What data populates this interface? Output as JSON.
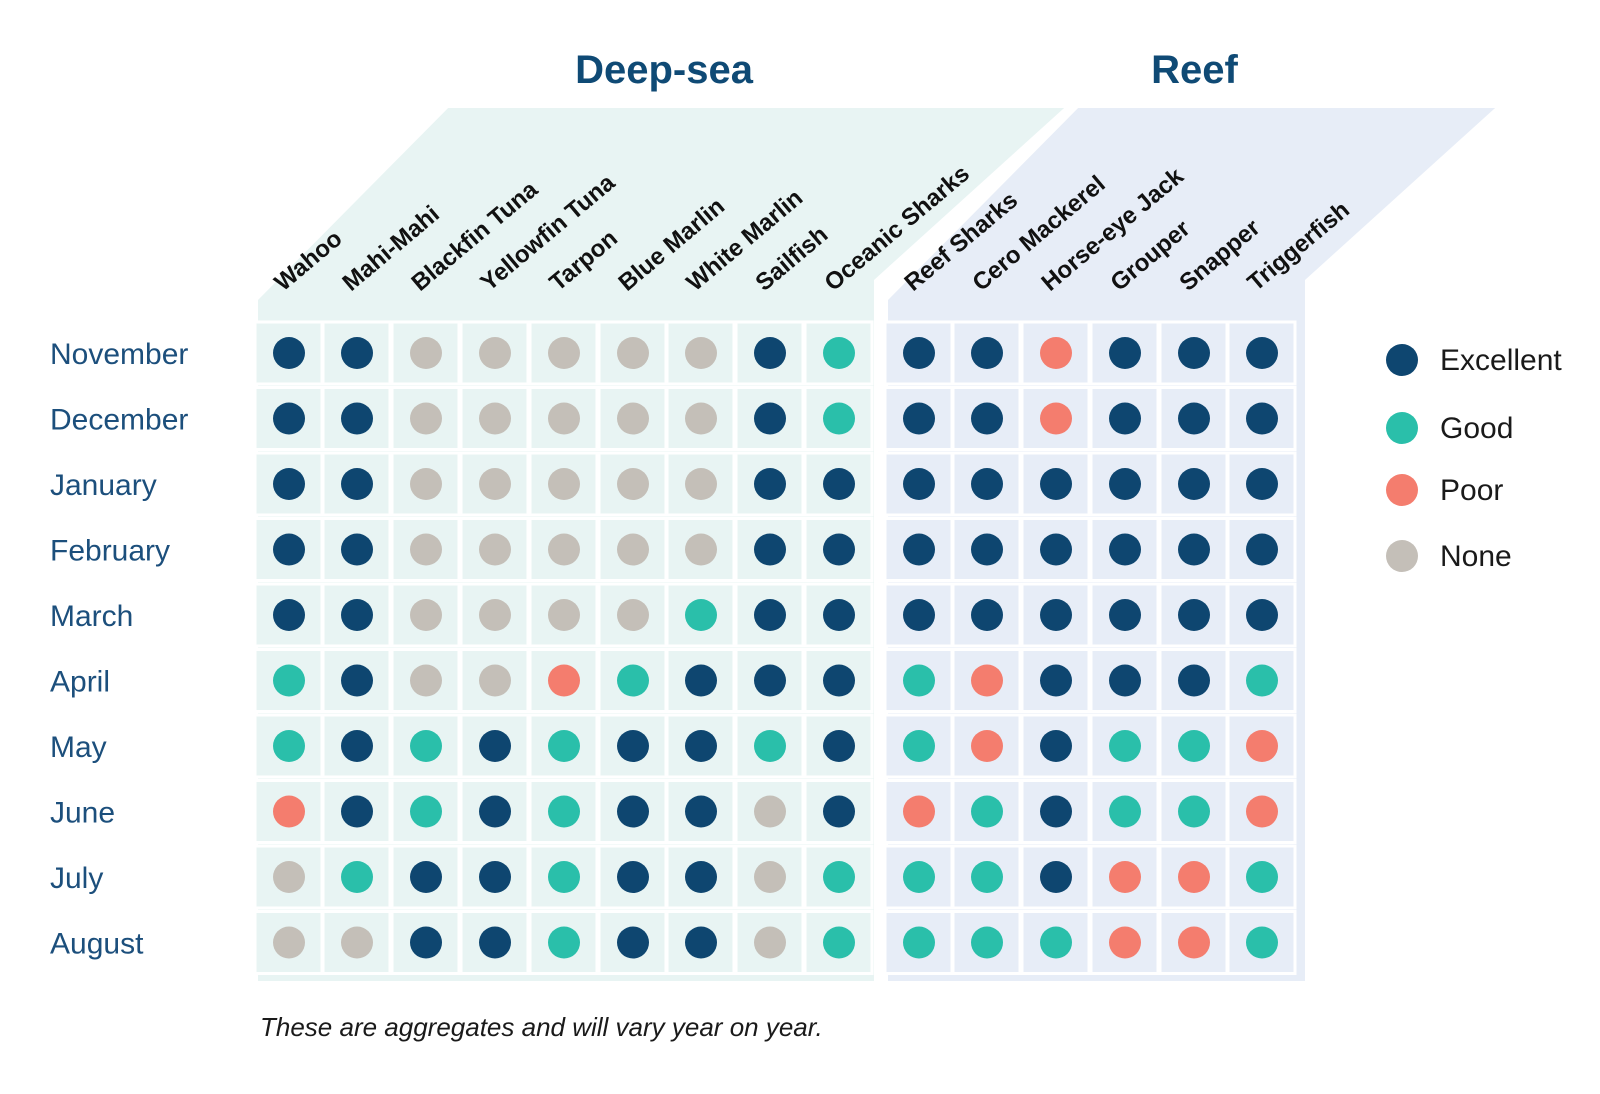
{
  "chart_data": {
    "type": "heatmap",
    "groups": [
      {
        "name": "Deep-sea",
        "species": [
          "Wahoo",
          "Mahi-Mahi",
          "Blackfin Tuna",
          "Yellowfin Tuna",
          "Tarpon",
          "Blue Marlin",
          "White Marlin",
          "Sailfish",
          "Oceanic Sharks"
        ]
      },
      {
        "name": "Reef",
        "species": [
          "Reef Sharks",
          "Cero Mackerel",
          "Horse-eye Jack",
          "Grouper",
          "Snapper",
          "Triggerfish"
        ]
      }
    ],
    "months": [
      "November",
      "December",
      "January",
      "February",
      "March",
      "April",
      "May",
      "June",
      "July",
      "August"
    ],
    "levels": [
      "Excellent",
      "Good",
      "Poor",
      "None"
    ],
    "level_colors": {
      "Excellent": "#0e4670",
      "Good": "#2abfaa",
      "Poor": "#f47d6e",
      "None": "#c4bfb8"
    },
    "group_colors": {
      "Deep-sea": "#e8f4f3",
      "Reef": "#e7edf7"
    },
    "values": [
      [
        "Excellent",
        "Excellent",
        "None",
        "None",
        "None",
        "None",
        "None",
        "Excellent",
        "Good",
        "Excellent",
        "Excellent",
        "Poor",
        "Excellent",
        "Excellent",
        "Excellent"
      ],
      [
        "Excellent",
        "Excellent",
        "None",
        "None",
        "None",
        "None",
        "None",
        "Excellent",
        "Good",
        "Excellent",
        "Excellent",
        "Poor",
        "Excellent",
        "Excellent",
        "Excellent"
      ],
      [
        "Excellent",
        "Excellent",
        "None",
        "None",
        "None",
        "None",
        "None",
        "Excellent",
        "Excellent",
        "Excellent",
        "Excellent",
        "Excellent",
        "Excellent",
        "Excellent",
        "Excellent"
      ],
      [
        "Excellent",
        "Excellent",
        "None",
        "None",
        "None",
        "None",
        "None",
        "Excellent",
        "Excellent",
        "Excellent",
        "Excellent",
        "Excellent",
        "Excellent",
        "Excellent",
        "Excellent"
      ],
      [
        "Excellent",
        "Excellent",
        "None",
        "None",
        "None",
        "None",
        "Good",
        "Excellent",
        "Excellent",
        "Excellent",
        "Excellent",
        "Excellent",
        "Excellent",
        "Excellent",
        "Excellent"
      ],
      [
        "Good",
        "Excellent",
        "None",
        "None",
        "Poor",
        "Good",
        "Excellent",
        "Excellent",
        "Excellent",
        "Good",
        "Poor",
        "Excellent",
        "Excellent",
        "Excellent",
        "Good"
      ],
      [
        "Good",
        "Excellent",
        "Good",
        "Excellent",
        "Good",
        "Excellent",
        "Excellent",
        "Good",
        "Excellent",
        "Good",
        "Poor",
        "Excellent",
        "Good",
        "Good",
        "Poor"
      ],
      [
        "Poor",
        "Excellent",
        "Good",
        "Excellent",
        "Good",
        "Excellent",
        "Excellent",
        "None",
        "Excellent",
        "Poor",
        "Good",
        "Excellent",
        "Good",
        "Good",
        "Poor"
      ],
      [
        "None",
        "Good",
        "Excellent",
        "Excellent",
        "Good",
        "Excellent",
        "Excellent",
        "None",
        "Good",
        "Good",
        "Good",
        "Excellent",
        "Poor",
        "Poor",
        "Good"
      ],
      [
        "None",
        "None",
        "Excellent",
        "Excellent",
        "Good",
        "Excellent",
        "Excellent",
        "None",
        "Good",
        "Good",
        "Good",
        "Good",
        "Poor",
        "Poor",
        "Good"
      ]
    ],
    "legend_position": "right",
    "footnote": "These are aggregates and will vary year on year."
  }
}
